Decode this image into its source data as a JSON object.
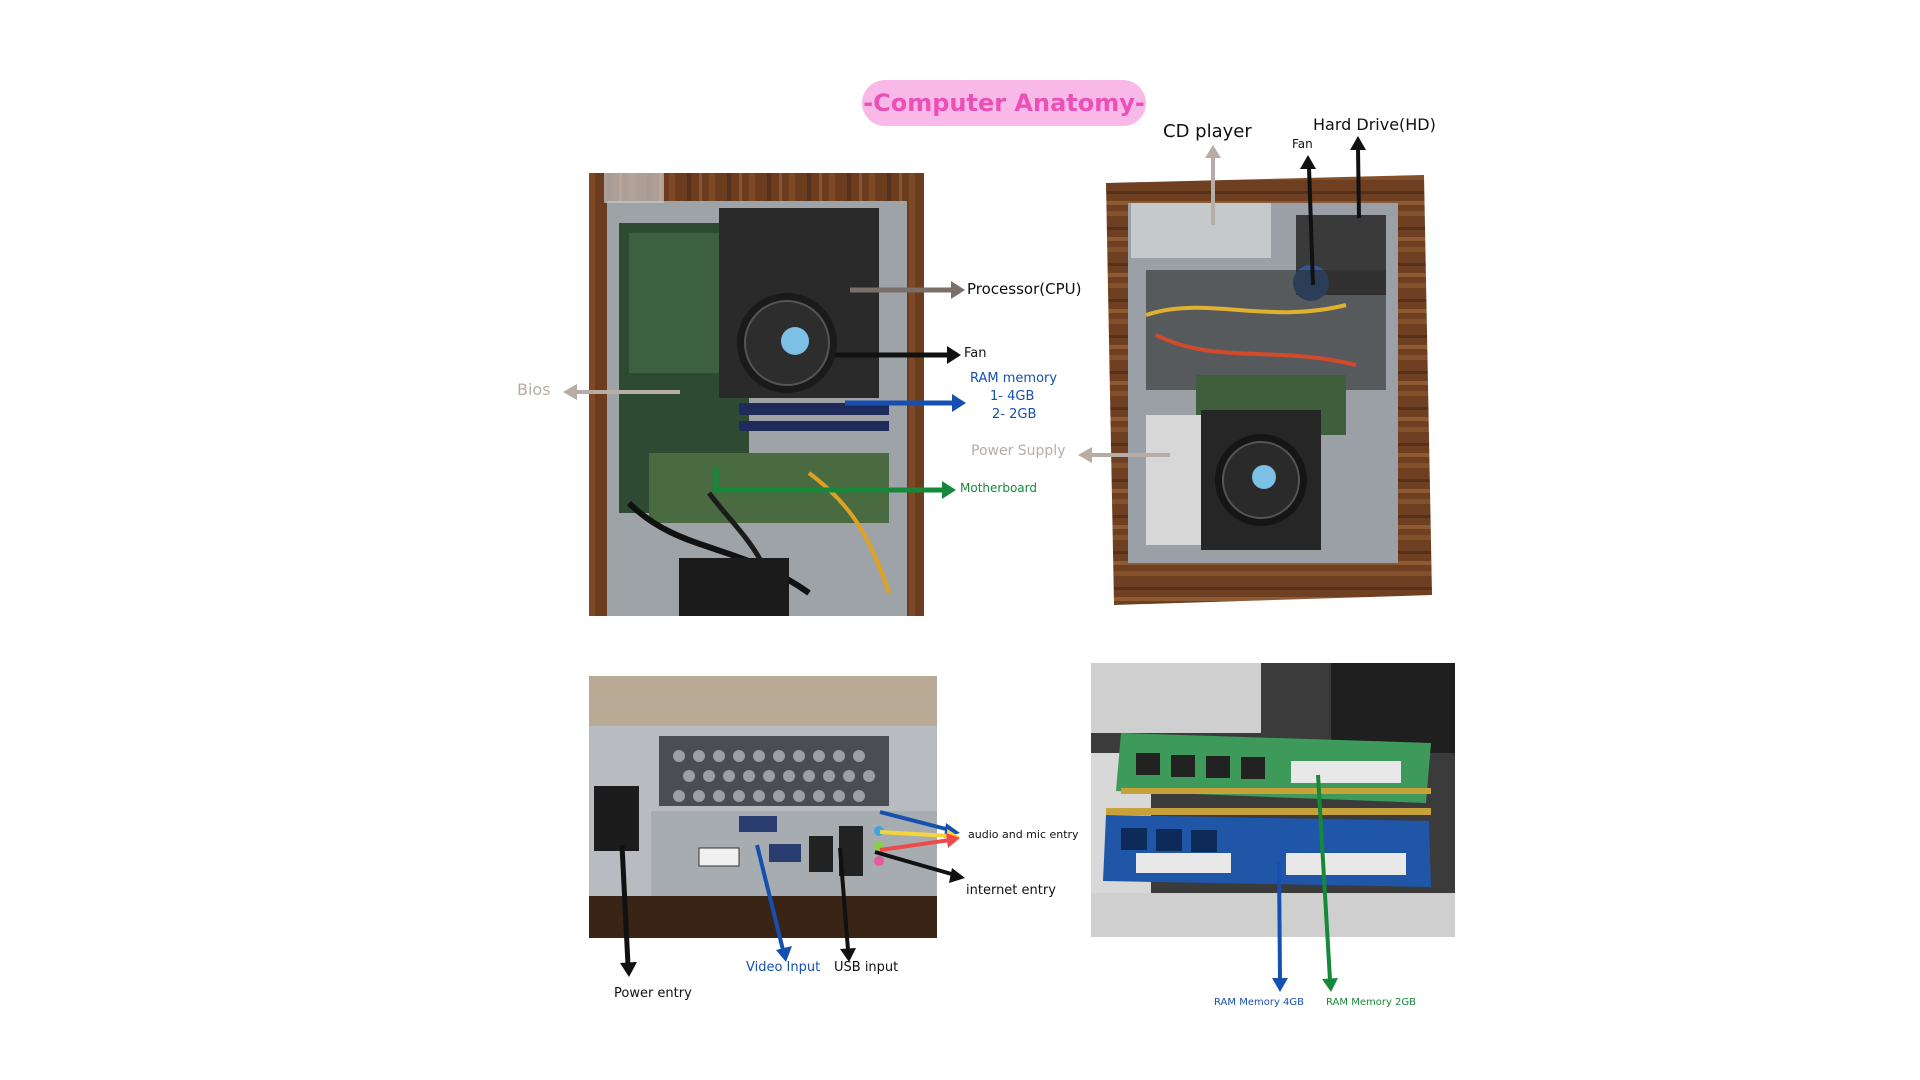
{
  "title": "-Computer Anatomy-",
  "colors": {
    "pink_pill": "#f9b9e8",
    "pink_text": "#ec4fb6",
    "black": "#111111",
    "grey": "#b7aca6",
    "blue": "#1550b0",
    "green": "#16883a",
    "red": "#ef4a4a",
    "yellow": "#f3d63a"
  },
  "panels": [
    {
      "id": "inside-top-view",
      "labels": {
        "processor": "Processor(CPU)",
        "fan": "Fan",
        "ram_title": "RAM memory",
        "ram_line1": "1- 4GB",
        "ram_line2": "2- 2GB",
        "bios": "Bios",
        "motherboard": "Motherboard"
      }
    },
    {
      "id": "inside-side-view",
      "labels": {
        "cd_player": "CD player",
        "fan": "Fan",
        "hard_drive": "Hard Drive(HD)",
        "power_supply": "Power Supply"
      }
    },
    {
      "id": "back-panel",
      "labels": {
        "audio_mic": "audio and mic entry",
        "internet": "internet entry",
        "power_entry": "Power entry",
        "video_input": "Video Input",
        "usb_input": "USB input"
      }
    },
    {
      "id": "ram-sticks",
      "labels": {
        "ram_4gb": "RAM Memory 4GB",
        "ram_2gb": "RAM Memory 2GB"
      }
    }
  ]
}
